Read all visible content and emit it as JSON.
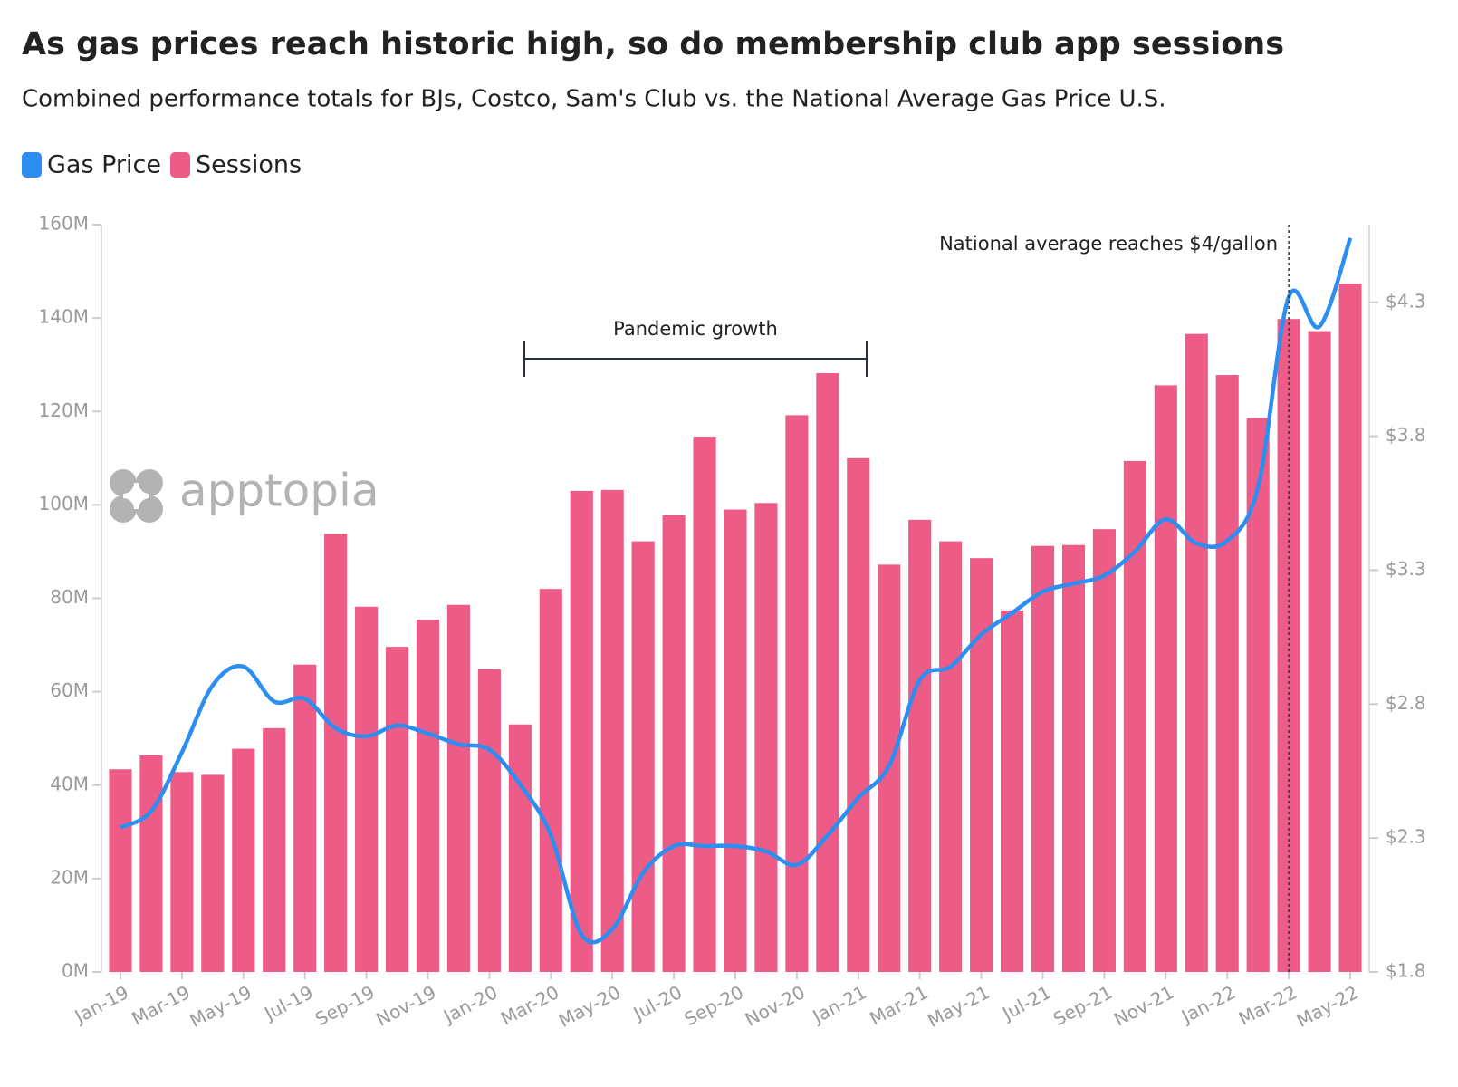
{
  "chart_data": {
    "type": "bar-line",
    "title": "As gas prices reach historic high, so do membership club app sessions",
    "subtitle": "Combined performance totals for BJs, Costco, Sam's Club vs. the National Average Gas Price U.S.",
    "watermark": "apptopia",
    "categories": [
      "Jan-19",
      null,
      "Mar-19",
      null,
      "May-19",
      null,
      "Jul-19",
      null,
      "Sep-19",
      null,
      "Nov-19",
      null,
      "Jan-20",
      null,
      "Mar-20",
      null,
      "May-20",
      null,
      "Jul-20",
      null,
      "Sep-20",
      null,
      "Nov-20",
      null,
      "Jan-21",
      null,
      "Mar-21",
      null,
      "May-21",
      null,
      "Jul-21",
      null,
      "Sep-21",
      null,
      "Nov-21",
      null,
      "Jan-22",
      null,
      "Mar-22",
      null,
      "May-22"
    ],
    "series": [
      {
        "name": "Gas Price",
        "color": "#2b8ef0",
        "type": "line",
        "axis": "y2",
        "values": [
          2.34,
          2.4,
          2.62,
          2.87,
          2.94,
          2.81,
          2.82,
          2.71,
          2.68,
          2.72,
          2.69,
          2.65,
          2.63,
          2.5,
          2.31,
          1.94,
          1.96,
          2.17,
          2.27,
          2.27,
          2.27,
          2.25,
          2.2,
          2.31,
          2.45,
          2.57,
          2.89,
          2.94,
          3.06,
          3.14,
          3.22,
          3.25,
          3.28,
          3.37,
          3.49,
          3.4,
          3.41,
          3.61,
          4.32,
          4.21,
          4.54
        ]
      },
      {
        "name": "Sessions",
        "color": "#ec5c87",
        "type": "bar",
        "values": [
          43400000,
          46400000,
          42800000,
          42200000,
          47800000,
          52200000,
          65800000,
          93800000,
          78200000,
          69600000,
          75400000,
          78600000,
          64800000,
          53000000,
          82000000,
          103000000,
          103200000,
          92200000,
          97800000,
          114600000,
          99000000,
          100400000,
          119200000,
          128200000,
          110000000,
          87200000,
          96800000,
          92200000,
          88600000,
          77400000,
          91200000,
          91400000,
          94800000,
          109400000,
          125600000,
          136600000,
          127800000,
          118600000,
          139800000,
          137200000,
          147400000
        ]
      }
    ],
    "ylim": [
      0,
      160000000
    ],
    "yticks": [
      {
        "value": 0,
        "label": "0M"
      },
      {
        "value": 20000000,
        "label": "20M"
      },
      {
        "value": 40000000,
        "label": "40M"
      },
      {
        "value": 60000000,
        "label": "60M"
      },
      {
        "value": 80000000,
        "label": "80M"
      },
      {
        "value": 100000000,
        "label": "100M"
      },
      {
        "value": 120000000,
        "label": "120M"
      },
      {
        "value": 140000000,
        "label": "140M"
      },
      {
        "value": 160000000,
        "label": "160M"
      }
    ],
    "y2lim": [
      1.8,
      4.59
    ],
    "y2ticks": [
      {
        "value": 1.8,
        "label": "$1.8"
      },
      {
        "value": 2.3,
        "label": "$2.3"
      },
      {
        "value": 2.8,
        "label": "$2.8"
      },
      {
        "value": 3.3,
        "label": "$3.3"
      },
      {
        "value": 3.8,
        "label": "$3.8"
      },
      {
        "value": 4.3,
        "label": "$4.3"
      }
    ],
    "annotations": [
      "Pandemic growth",
      "National average reaches $4/gallon"
    ],
    "legend": "top-left"
  }
}
